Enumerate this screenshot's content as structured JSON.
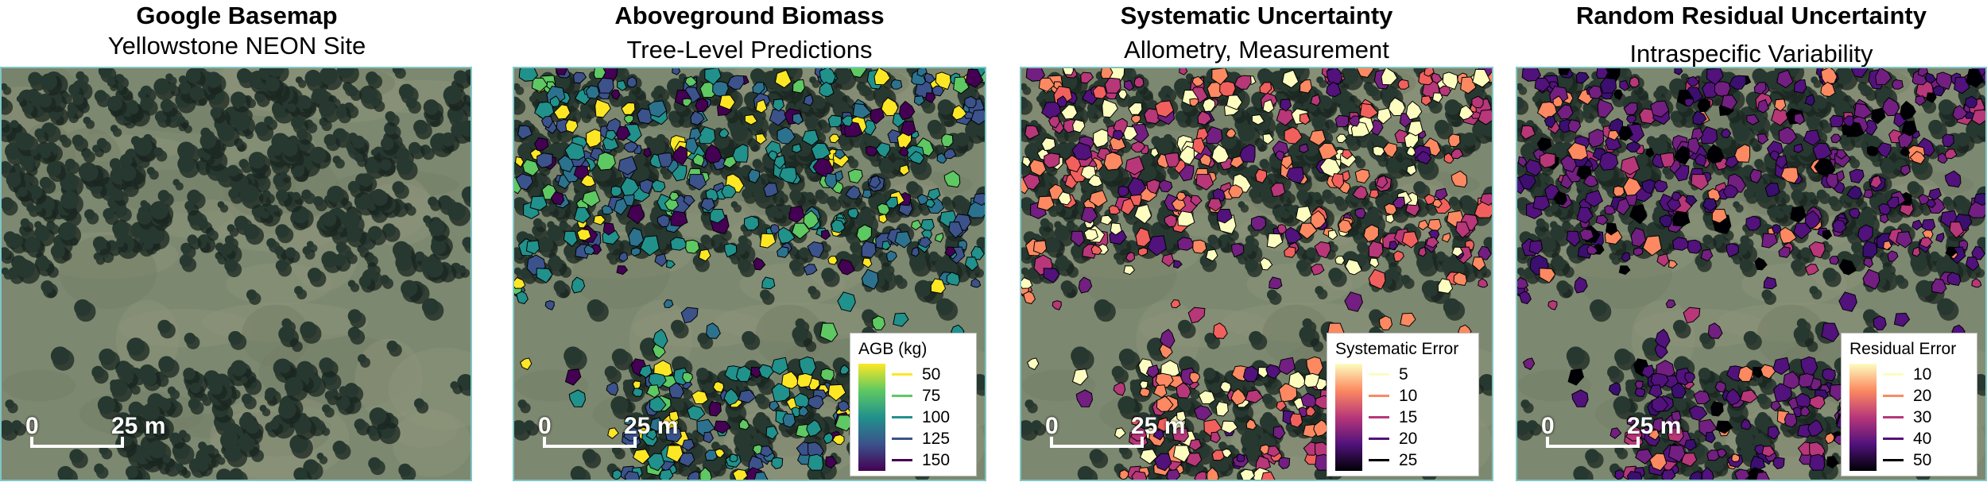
{
  "panels": [
    {
      "title": "Google Basemap",
      "subtitle": "Yellowstone NEON Site"
    },
    {
      "title": "Aboveground Biomass",
      "subtitle": "Tree-Level Predictions"
    },
    {
      "title": "Systematic Uncertainty",
      "subtitle": "Allometry, Measurement"
    },
    {
      "title": "Random Residual Uncertainty",
      "subtitle": "Intraspecific Variability"
    }
  ],
  "scalebar": {
    "start": "0",
    "end": "25 m"
  },
  "legends": [
    {
      "title": "AGB (kg)",
      "items": [
        {
          "label": "50",
          "color": "#fde725"
        },
        {
          "label": "75",
          "color": "#5ec962"
        },
        {
          "label": "100",
          "color": "#21918c"
        },
        {
          "label": "125",
          "color": "#3b528b"
        },
        {
          "label": "150",
          "color": "#440154"
        }
      ],
      "gradient": [
        "#440154",
        "#3b528b",
        "#21918c",
        "#5ec962",
        "#fde725"
      ]
    },
    {
      "title": "Systematic Error",
      "items": [
        {
          "label": "5",
          "color": "#fcfdbf"
        },
        {
          "label": "10",
          "color": "#fc8961"
        },
        {
          "label": "15",
          "color": "#b73779"
        },
        {
          "label": "20",
          "color": "#51127c"
        },
        {
          "label": "25",
          "color": "#000004"
        }
      ],
      "gradient": [
        "#000004",
        "#51127c",
        "#b73779",
        "#fc8961",
        "#fcfdbf"
      ]
    },
    {
      "title": "Residual Error",
      "items": [
        {
          "label": "10",
          "color": "#fcfdbf"
        },
        {
          "label": "20",
          "color": "#fc8961"
        },
        {
          "label": "30",
          "color": "#b73779"
        },
        {
          "label": "40",
          "color": "#51127c"
        },
        {
          "label": "50",
          "color": "#000004"
        }
      ],
      "gradient": [
        "#000004",
        "#51127c",
        "#b73779",
        "#fc8961",
        "#fcfdbf"
      ]
    }
  ]
}
